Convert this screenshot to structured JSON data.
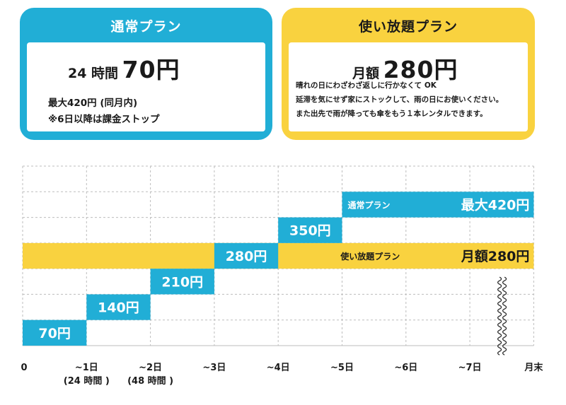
{
  "cards": {
    "standard": {
      "title": "通常プラン",
      "price_prefix": "24 時間",
      "price": "70円",
      "notes": [
        "最大420円 (同月内)",
        "※6日以降は課金ストップ"
      ]
    },
    "unlimited": {
      "title": "使い放題プラン",
      "price_prefix": "月額",
      "price": "280円",
      "notes": [
        "晴れの日にわざわざ返しに行かなくて OK",
        "延滞を気にせず家にストックして、雨の日にお使いください。",
        "また出先で雨が降っても傘をもう１本レンタルできます。"
      ]
    }
  },
  "colors": {
    "blue": "#21aed6",
    "yellow": "#f9d23f",
    "text": "#1a1a1a",
    "grid": "#bdbdbd"
  },
  "chart_data": {
    "type": "bar",
    "x_ticks": [
      "0",
      "~1日",
      "~2日",
      "~3日",
      "~4日",
      "~5日",
      "~6日",
      "~7日",
      "月末"
    ],
    "x_subticks": [
      "",
      "(24 時間 )",
      "(48 時間 )",
      "",
      "",
      "",
      "",
      "",
      ""
    ],
    "ylim": [
      0,
      490
    ],
    "series": [
      {
        "name": "通常プラン",
        "color": "#21aed6",
        "steps": [
          {
            "from": 0,
            "to": 1,
            "value": 70,
            "label": "70円"
          },
          {
            "from": 1,
            "to": 2,
            "value": 140,
            "label": "140円"
          },
          {
            "from": 2,
            "to": 3,
            "value": 210,
            "label": "210円"
          },
          {
            "from": 3,
            "to": 4,
            "value": 280,
            "label": "280円"
          },
          {
            "from": 4,
            "to": 5,
            "value": 350,
            "label": "350円"
          },
          {
            "from": 5,
            "to": 8,
            "value": 420,
            "label": "最大420円"
          }
        ]
      },
      {
        "name": "使い放題プラン",
        "color": "#f9d23f",
        "steps": [
          {
            "from": 0,
            "to": 8,
            "value": 280,
            "label": "月額280円"
          }
        ]
      }
    ],
    "axis_break_after": 7
  }
}
